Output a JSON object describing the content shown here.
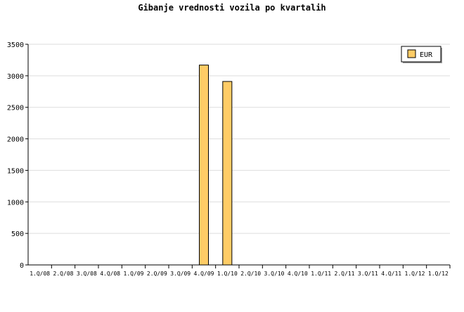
{
  "chart_data": {
    "type": "bar",
    "title": "Gibanje vrednosti vozila po kvartalih",
    "categories": [
      "1.Q/08",
      "2.Q/08",
      "3.Q/08",
      "4.Q/08",
      "1.Q/09",
      "2.Q/09",
      "3.Q/09",
      "4.Q/09",
      "1.Q/10",
      "2.Q/10",
      "3.Q/10",
      "4.Q/10",
      "1.Q/11",
      "2.Q/11",
      "3.Q/11",
      "4.Q/11",
      "1.Q/12",
      "1.Q/12"
    ],
    "series": [
      {
        "name": "EUR",
        "values": [
          0,
          0,
          0,
          0,
          0,
          0,
          0,
          3170,
          2910,
          0,
          0,
          0,
          0,
          0,
          0,
          0,
          0,
          0
        ],
        "color": "#ffcc66"
      }
    ],
    "yticks": [
      "0",
      "500",
      "1000",
      "1500",
      "2000",
      "2500",
      "3000",
      "3500"
    ],
    "ylim": [
      0,
      3500
    ],
    "grid": true,
    "legend": "top-right"
  }
}
